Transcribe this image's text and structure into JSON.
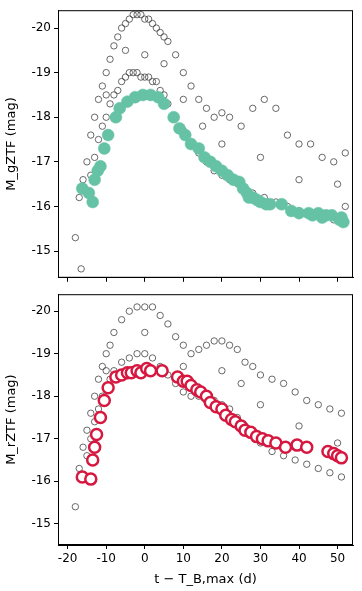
{
  "chart_data": [
    {
      "type": "scatter",
      "y_label": "M_gZTF (mag)",
      "xlim": [
        -22.5,
        54
      ],
      "xticks": [
        -20,
        -10,
        0,
        10,
        20,
        30,
        40,
        50
      ],
      "ylim": [
        -14.4,
        -20.4
      ],
      "yticks": [
        -15,
        -16,
        -17,
        -18,
        -19,
        -20
      ],
      "grid": false,
      "tick_labels": "y",
      "series": [
        {
          "color": "#444444",
          "marker": "open",
          "x": [
            -18,
            -17,
            -16.5,
            -16,
            -15,
            -15,
            -14,
            -14,
            -13,
            -13,
            -12,
            -12,
            -11,
            -11,
            -10,
            -10,
            -9,
            -9,
            -8,
            -8,
            -7,
            -7,
            -6,
            -6,
            -5,
            -5,
            -4,
            -4,
            -3,
            -3,
            -2,
            -2,
            -1,
            -1,
            0,
            0,
            1,
            1,
            2,
            2,
            3,
            3,
            4,
            4,
            5,
            5,
            6,
            6,
            8,
            8,
            10,
            10,
            12,
            12,
            14,
            14,
            16,
            16,
            18,
            18,
            20,
            20,
            22,
            22,
            25,
            25,
            28,
            28,
            31,
            31,
            34,
            34,
            37,
            37,
            40,
            40,
            43,
            43,
            46,
            46,
            49,
            49,
            52,
            52,
            0,
            -5,
            5,
            10,
            15,
            20,
            30,
            40,
            50,
            -10
          ],
          "values": [
            -15.3,
            -16.2,
            -14.6,
            -16.6,
            -17.0,
            -16.3,
            -17.6,
            -16.7,
            -18.0,
            -17.1,
            -18.4,
            -17.5,
            -18.7,
            -17.8,
            -19.0,
            -18.0,
            -19.3,
            -18.3,
            -19.6,
            -18.5,
            -19.8,
            -18.6,
            -20.0,
            -18.8,
            -20.1,
            -18.9,
            -20.2,
            -19.0,
            -20.3,
            -19.0,
            -20.3,
            -19.0,
            -20.3,
            -18.9,
            -20.2,
            -18.9,
            -20.2,
            -18.9,
            -20.1,
            -18.8,
            -20.0,
            -18.8,
            -19.9,
            -18.6,
            -19.8,
            -18.5,
            -19.7,
            -18.3,
            -19.4,
            -18.0,
            -19.0,
            -17.7,
            -18.7,
            -17.4,
            -18.4,
            -17.2,
            -18.2,
            -17.0,
            -18.0,
            -16.8,
            -18.1,
            -16.7,
            -18.0,
            -16.6,
            -17.8,
            -16.5,
            -18.2,
            -16.3,
            -18.4,
            -16.2,
            -18.2,
            -16.1,
            -17.6,
            -16.0,
            -17.4,
            -15.9,
            -17.4,
            -15.8,
            -17.1,
            -15.8,
            -17.0,
            -15.7,
            -17.2,
            -16.0,
            -19.4,
            -19.5,
            -19.2,
            -18.4,
            -17.8,
            -17.4,
            -17.1,
            -16.6,
            -16.5,
            -18.5
          ]
        },
        {
          "color": "#66c2a5",
          "marker": "filled",
          "x": [
            -16.2,
            -14.5,
            -13.5,
            -13,
            -12.2,
            -11.5,
            -10.5,
            -9.5,
            -7.5,
            -6.5,
            -4.5,
            -2.5,
            -0.5,
            1.5,
            3.5,
            5,
            7.5,
            9,
            10.5,
            12,
            14,
            15.5,
            17,
            18.5,
            20,
            21.5,
            23,
            24.5,
            25.5,
            26.5,
            27,
            28,
            29,
            30,
            31.5,
            32.5,
            35.5,
            38,
            40,
            42.5,
            43.5,
            45,
            46,
            47,
            48.5,
            50.5,
            51,
            51.5
          ],
          "values": [
            -16.4,
            -16.3,
            -16.1,
            -16.6,
            -16.8,
            -16.9,
            -17.3,
            -17.6,
            -18.0,
            -18.2,
            -18.35,
            -18.45,
            -18.5,
            -18.5,
            -18.45,
            -18.3,
            -18.0,
            -17.75,
            -17.6,
            -17.4,
            -17.3,
            -17.1,
            -17.0,
            -16.9,
            -16.8,
            -16.7,
            -16.6,
            -16.55,
            -16.4,
            -16.3,
            -16.2,
            -16.2,
            -16.15,
            -16.1,
            -16.05,
            -16.05,
            -16.05,
            -15.9,
            -15.85,
            -15.85,
            -15.8,
            -15.85,
            -15.75,
            -15.8,
            -15.8,
            -15.7,
            -15.75,
            -15.65
          ]
        }
      ]
    },
    {
      "type": "scatter",
      "y_label": "M_rZTF (mag)",
      "x_label": "t − T_B,max (d)",
      "xlim": [
        -22.5,
        54
      ],
      "xticks": [
        -20,
        -10,
        0,
        10,
        20,
        30,
        40,
        50
      ],
      "ylim": [
        -14.5,
        -20.4
      ],
      "yticks": [
        -15,
        -16,
        -17,
        -18,
        -19,
        -20
      ],
      "grid": false,
      "series": [
        {
          "color": "#444444",
          "marker": "open",
          "x": [
            -18,
            -17,
            -16,
            -15,
            -15,
            -14,
            -14,
            -13,
            -13,
            -12,
            -12,
            -11,
            -11,
            -10,
            -10,
            -9,
            -9,
            -8,
            -8,
            -6,
            -6,
            -4,
            -4,
            -2,
            -2,
            0,
            0,
            2,
            2,
            4,
            4,
            6,
            6,
            8,
            8,
            10,
            10,
            12,
            12,
            14,
            14,
            16,
            16,
            18,
            18,
            20,
            20,
            22,
            22,
            24,
            24,
            26,
            26,
            28,
            28,
            30,
            30,
            33,
            33,
            36,
            36,
            39,
            39,
            42,
            42,
            45,
            45,
            48,
            48,
            51,
            51,
            0,
            10,
            20,
            30,
            40,
            50,
            -10,
            25
          ],
          "values": [
            -15.4,
            -16.3,
            -16.8,
            -17.2,
            -16.6,
            -17.6,
            -17.0,
            -18.0,
            -17.4,
            -18.4,
            -17.7,
            -18.7,
            -18.0,
            -19.0,
            -18.2,
            -19.2,
            -18.4,
            -19.5,
            -18.6,
            -19.8,
            -18.8,
            -20.0,
            -18.9,
            -20.1,
            -19.0,
            -20.1,
            -19.0,
            -20.1,
            -18.9,
            -19.9,
            -18.7,
            -19.7,
            -18.5,
            -19.4,
            -18.3,
            -19.2,
            -18.1,
            -19.0,
            -18.0,
            -19.1,
            -18.0,
            -19.2,
            -17.9,
            -19.3,
            -17.9,
            -19.3,
            -17.8,
            -19.2,
            -17.7,
            -19.1,
            -17.5,
            -18.8,
            -17.3,
            -18.7,
            -17.1,
            -18.5,
            -16.9,
            -18.4,
            -16.7,
            -18.3,
            -16.6,
            -18.1,
            -16.5,
            -17.9,
            -16.4,
            -17.8,
            -16.3,
            -17.7,
            -16.2,
            -17.6,
            -16.1,
            -19.5,
            -18.7,
            -18.6,
            -17.8,
            -17.3,
            -16.9,
            -18.6,
            -18.3
          ]
        },
        {
          "color": "#d6173f",
          "marker": "ring",
          "x": [
            -16.2,
            -14,
            -13.5,
            -13,
            -12.5,
            -11.5,
            -10.5,
            -9.5,
            -7.5,
            -6,
            -4.5,
            -3.5,
            -2,
            -1,
            0.5,
            1.5,
            4.5,
            8.5,
            10,
            11,
            12,
            13.5,
            14.5,
            16,
            17,
            18.5,
            20,
            21,
            22.5,
            23.5,
            25,
            26,
            27.5,
            29,
            30.5,
            32,
            34,
            36.5,
            39.5,
            42,
            47.5,
            49,
            50,
            51
          ],
          "values": [
            -16.1,
            -16.05,
            -16.5,
            -16.8,
            -17.1,
            -17.5,
            -17.9,
            -18.2,
            -18.45,
            -18.5,
            -18.55,
            -18.55,
            -18.6,
            -18.55,
            -18.65,
            -18.6,
            -18.6,
            -18.45,
            -18.35,
            -18.35,
            -18.25,
            -18.15,
            -18.1,
            -18.0,
            -17.85,
            -17.75,
            -17.7,
            -17.55,
            -17.45,
            -17.4,
            -17.3,
            -17.2,
            -17.15,
            -17.05,
            -17.0,
            -16.95,
            -16.9,
            -16.8,
            -16.85,
            -16.8,
            -16.7,
            -16.65,
            -16.6,
            -16.55
          ]
        }
      ]
    }
  ]
}
